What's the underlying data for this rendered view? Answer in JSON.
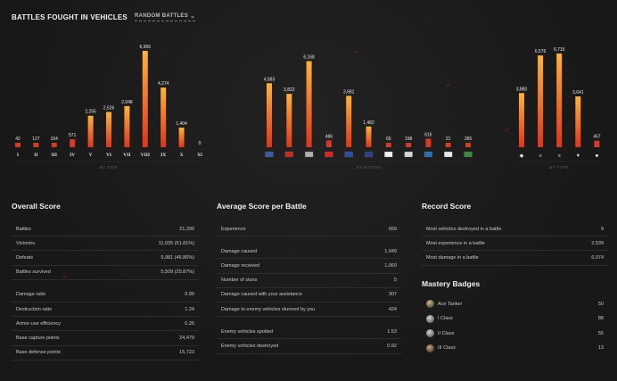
{
  "header": {
    "title": "BATTLES FOUGHT IN VEHICLES",
    "mode": "RANDOM BATTLES"
  },
  "colors": {
    "bar_top": "#ffb23a",
    "bar_bottom": "#e0341b",
    "bar_low": "#d63a22"
  },
  "chart_data": [
    {
      "type": "bar",
      "group_label": "BY TIER",
      "categories": [
        "I",
        "II",
        "III",
        "IV",
        "V",
        "VI",
        "VII",
        "VIII",
        "IX",
        "X",
        "XI"
      ],
      "values": [
        42,
        127,
        154,
        571,
        2255,
        2526,
        2948,
        6906,
        4274,
        1404,
        0
      ],
      "value_labels": [
        "42",
        "127",
        "154",
        "571",
        "2,255",
        "2,526",
        "2,948",
        "6,906",
        "4,274",
        "1,404",
        "0"
      ]
    },
    {
      "type": "bar",
      "group_label": "BY NATION",
      "categories": [
        "usa-flag",
        "china-flag",
        "czech-flag",
        "china-flag-2",
        "france-flag",
        "uk-flag",
        "japan-flag",
        "czechoslovakia-flag",
        "sweden-flag",
        "poland-flag",
        "italy-flag"
      ],
      "values": [
        4583,
        3822,
        6168,
        486,
        3681,
        1482,
        65,
        198,
        616,
        21,
        265
      ],
      "value_labels": [
        "4,583",
        "3,822",
        "6,168",
        "486",
        "3,681",
        "1,482",
        "65",
        "198",
        "616",
        "21",
        "265"
      ]
    },
    {
      "type": "bar",
      "group_label": "BY TYPE",
      "categories": [
        "light-tank-icon",
        "medium-tank-icon",
        "heavy-tank-icon",
        "td-icon",
        "spg-icon"
      ],
      "values": [
        3880,
        6576,
        6715,
        3641,
        467
      ],
      "value_labels": [
        "3,880",
        "6,576",
        "6,715",
        "3,641",
        "467"
      ]
    }
  ],
  "overall": {
    "title": "Overall Score",
    "rows": [
      {
        "label": "Battles",
        "value": "21,299"
      },
      {
        "label": "Victories",
        "value": "11,035 (51.81%)"
      },
      {
        "label": "Defeats",
        "value": "9,981 (46.86%)"
      },
      {
        "label": "Battles survived",
        "value": "5,509 (25.87%)"
      },
      {
        "label": "Damage ratio",
        "value": "0.99"
      },
      {
        "label": "Destruction ratio",
        "value": "1.24"
      },
      {
        "label": "Armor-use efficiency",
        "value": "0.26"
      },
      {
        "label": "Base capture points",
        "value": "24,479"
      },
      {
        "label": "Base defense points",
        "value": "15,723"
      }
    ]
  },
  "average": {
    "title": "Average Score per Battle",
    "rows": [
      {
        "label": "Experience",
        "value": "659"
      },
      {
        "label": "Damage caused",
        "value": "1,049"
      },
      {
        "label": "Damage received",
        "value": "1,060"
      },
      {
        "label": "Number of stuns",
        "value": "5"
      },
      {
        "label": "Damage caused with your assistance",
        "value": "307"
      },
      {
        "label": "Damage to enemy vehicles stunned by you",
        "value": "424"
      },
      {
        "label": "Enemy vehicles spotted",
        "value": "1.53"
      },
      {
        "label": "Enemy vehicles destroyed",
        "value": "0.92"
      }
    ]
  },
  "record": {
    "title": "Record Score",
    "rows": [
      {
        "label": "Most vehicles destroyed in a battle",
        "value": "9"
      },
      {
        "label": "Most experience in a battle",
        "value": "2,539"
      },
      {
        "label": "Most damage in a battle",
        "value": "6,074"
      }
    ]
  },
  "mastery": {
    "title": "Mastery Badges",
    "rows": [
      {
        "label": "Ace Tanker",
        "value": "50",
        "icon": "ace-tanker-badge-icon"
      },
      {
        "label": "I Class",
        "value": "88",
        "icon": "class-1-badge-icon"
      },
      {
        "label": "II Class",
        "value": "55",
        "icon": "class-2-badge-icon"
      },
      {
        "label": "III Class",
        "value": "13",
        "icon": "class-3-badge-icon"
      }
    ]
  }
}
